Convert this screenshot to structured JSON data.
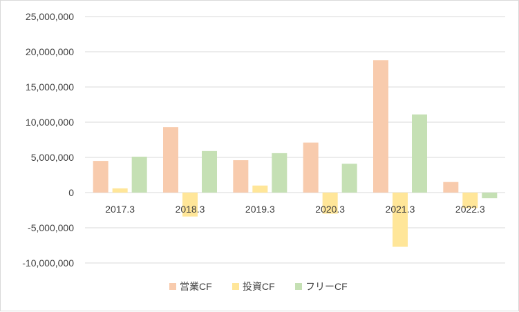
{
  "chart_data": {
    "type": "bar",
    "title": "",
    "xlabel": "",
    "ylabel": "",
    "categories": [
      "2017.3",
      "2018.3",
      "2019.3",
      "2020.3",
      "2021.3",
      "2022.3"
    ],
    "ylim": [
      -10000000,
      25000000
    ],
    "yticks": [
      25000000,
      20000000,
      15000000,
      10000000,
      5000000,
      0,
      -5000000,
      -10000000
    ],
    "ytick_labels": [
      "25,000,000",
      "20,000,000",
      "15,000,000",
      "10,000,000",
      "5,000,000",
      "0",
      "-5,000,000",
      "-10,000,000"
    ],
    "grid": true,
    "legend_position": "bottom",
    "series": [
      {
        "name": "営業CF",
        "color": "#F8CBAD",
        "values": [
          4500000,
          9300000,
          4600000,
          7100000,
          18800000,
          1500000
        ]
      },
      {
        "name": "投資CF",
        "color": "#FFE699",
        "values": [
          600000,
          -3400000,
          1000000,
          -3000000,
          -7700000,
          -2200000
        ]
      },
      {
        "name": "フリーCF",
        "color": "#C5E0B4",
        "values": [
          5100000,
          5900000,
          5600000,
          4100000,
          11100000,
          -800000
        ]
      }
    ]
  }
}
